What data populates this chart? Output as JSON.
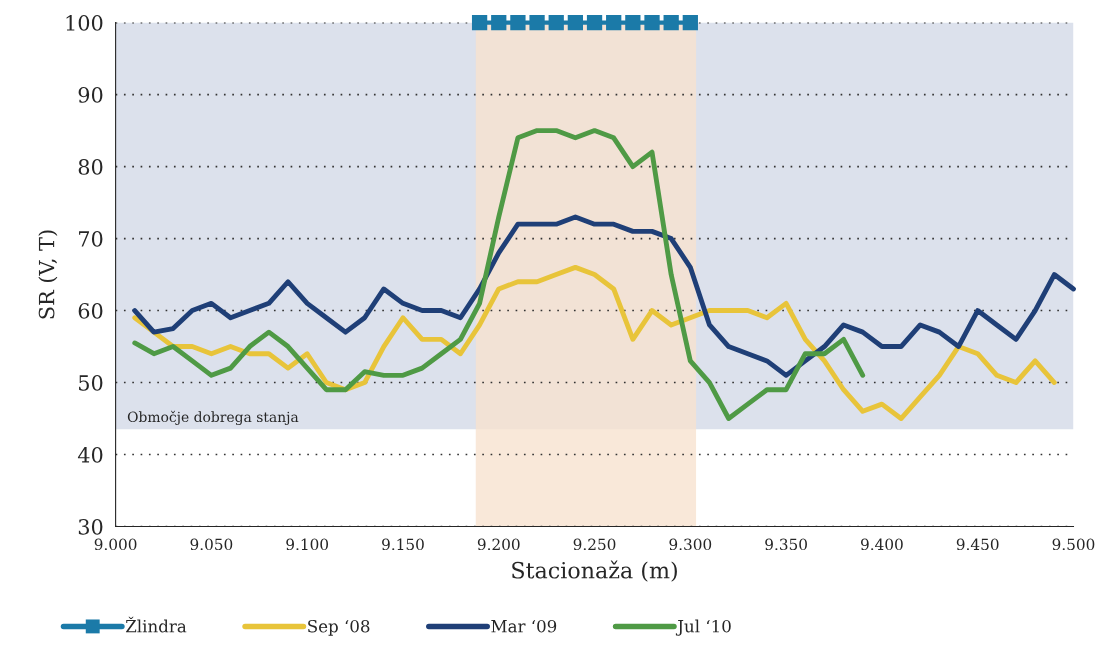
{
  "chart_data": {
    "type": "line",
    "xlabel": "Stacionaža (m)",
    "ylabel": "SR (V, T)",
    "xlim": [
      9.0,
      9.5
    ],
    "xticks": [
      {
        "value": 9.0,
        "label": "9.000"
      },
      {
        "value": 9.05,
        "label": "9.050"
      },
      {
        "value": 9.1,
        "label": "9.100"
      },
      {
        "value": 9.15,
        "label": "9.150"
      },
      {
        "value": 9.2,
        "label": "9.200"
      },
      {
        "value": 9.25,
        "label": "9.250"
      },
      {
        "value": 9.3,
        "label": "9.300"
      },
      {
        "value": 9.35,
        "label": "9.350"
      },
      {
        "value": 9.4,
        "label": "9.400"
      },
      {
        "value": 9.45,
        "label": "9.450"
      },
      {
        "value": 9.5,
        "label": "9.500"
      }
    ],
    "ylim": [
      30,
      100
    ],
    "yticks": [
      30,
      40,
      50,
      60,
      70,
      80,
      90,
      100
    ],
    "grid": "y",
    "legend": "bottom",
    "bands": [
      {
        "axis": "y",
        "from": 43.5,
        "to": 100,
        "label": "Območje dobrega stanja",
        "color": "#dce1ec"
      },
      {
        "axis": "x",
        "from": 9.188,
        "to": 9.303,
        "color": "#f7e2cf"
      }
    ],
    "series": [
      {
        "name": "Žlindra",
        "color": "#1b7aa8",
        "marker": "square",
        "x": [
          9.19,
          9.2,
          9.21,
          9.22,
          9.23,
          9.24,
          9.25,
          9.26,
          9.27,
          9.28,
          9.29,
          9.3
        ],
        "values": [
          100,
          100,
          100,
          100,
          100,
          100,
          100,
          100,
          100,
          100,
          100,
          100
        ]
      },
      {
        "name": "Sep ‘08",
        "color": "#e8c43a",
        "marker": "none",
        "x": [
          9.01,
          9.02,
          9.03,
          9.04,
          9.05,
          9.06,
          9.07,
          9.08,
          9.09,
          9.1,
          9.11,
          9.12,
          9.13,
          9.14,
          9.15,
          9.16,
          9.17,
          9.18,
          9.19,
          9.2,
          9.21,
          9.22,
          9.23,
          9.24,
          9.25,
          9.26,
          9.27,
          9.28,
          9.29,
          9.3,
          9.31,
          9.32,
          9.33,
          9.34,
          9.35,
          9.36,
          9.37,
          9.38,
          9.39,
          9.4,
          9.41,
          9.42,
          9.43,
          9.44,
          9.45,
          9.46,
          9.47,
          9.48,
          9.49
        ],
        "values": [
          59,
          57,
          55,
          55,
          54,
          55,
          54,
          54,
          52,
          54,
          50,
          49,
          50,
          55,
          59,
          56,
          56,
          54,
          58,
          63,
          64,
          64,
          65,
          66,
          65,
          63,
          56,
          60,
          58,
          59,
          60,
          60,
          60,
          59,
          61,
          56,
          53,
          49,
          46,
          47,
          45,
          48,
          51,
          55,
          54,
          51,
          50,
          53,
          50
        ]
      },
      {
        "name": "Mar ‘09",
        "color": "#1f3f77",
        "marker": "none",
        "x": [
          9.01,
          9.02,
          9.03,
          9.04,
          9.05,
          9.06,
          9.07,
          9.08,
          9.09,
          9.1,
          9.11,
          9.12,
          9.13,
          9.14,
          9.15,
          9.16,
          9.17,
          9.18,
          9.19,
          9.2,
          9.21,
          9.22,
          9.23,
          9.24,
          9.25,
          9.26,
          9.27,
          9.28,
          9.29,
          9.3,
          9.31,
          9.32,
          9.33,
          9.34,
          9.35,
          9.36,
          9.37,
          9.38,
          9.39,
          9.4,
          9.41,
          9.42,
          9.43,
          9.44,
          9.45,
          9.46,
          9.47,
          9.48,
          9.49,
          9.5
        ],
        "values": [
          60,
          57,
          57.5,
          60,
          61,
          59,
          60,
          61,
          64,
          61,
          59,
          57,
          59,
          63,
          61,
          60,
          60,
          59,
          63,
          68,
          72,
          72,
          72,
          73,
          72,
          72,
          71,
          71,
          70,
          66,
          58,
          55,
          54,
          53,
          51,
          53,
          55,
          58,
          57,
          55,
          55,
          58,
          57,
          55,
          60,
          58,
          56,
          60,
          65,
          63
        ]
      },
      {
        "name": "Jul ‘10",
        "color": "#4f9a45",
        "marker": "none",
        "x": [
          9.01,
          9.02,
          9.03,
          9.04,
          9.05,
          9.06,
          9.07,
          9.08,
          9.09,
          9.1,
          9.11,
          9.12,
          9.13,
          9.14,
          9.15,
          9.16,
          9.17,
          9.18,
          9.19,
          9.2,
          9.21,
          9.22,
          9.23,
          9.24,
          9.25,
          9.26,
          9.27,
          9.28,
          9.29,
          9.3,
          9.31,
          9.32,
          9.33,
          9.34,
          9.35,
          9.36,
          9.37,
          9.38,
          9.39
        ],
        "values": [
          55.5,
          54,
          55,
          53,
          51,
          52,
          55,
          57,
          55,
          52,
          49,
          49,
          51.5,
          51,
          51,
          52,
          54,
          56,
          61,
          73,
          84,
          85,
          85,
          84,
          85,
          84,
          80,
          82,
          65,
          53,
          50,
          45,
          47,
          49,
          49,
          54,
          54,
          56,
          51
        ]
      }
    ]
  }
}
